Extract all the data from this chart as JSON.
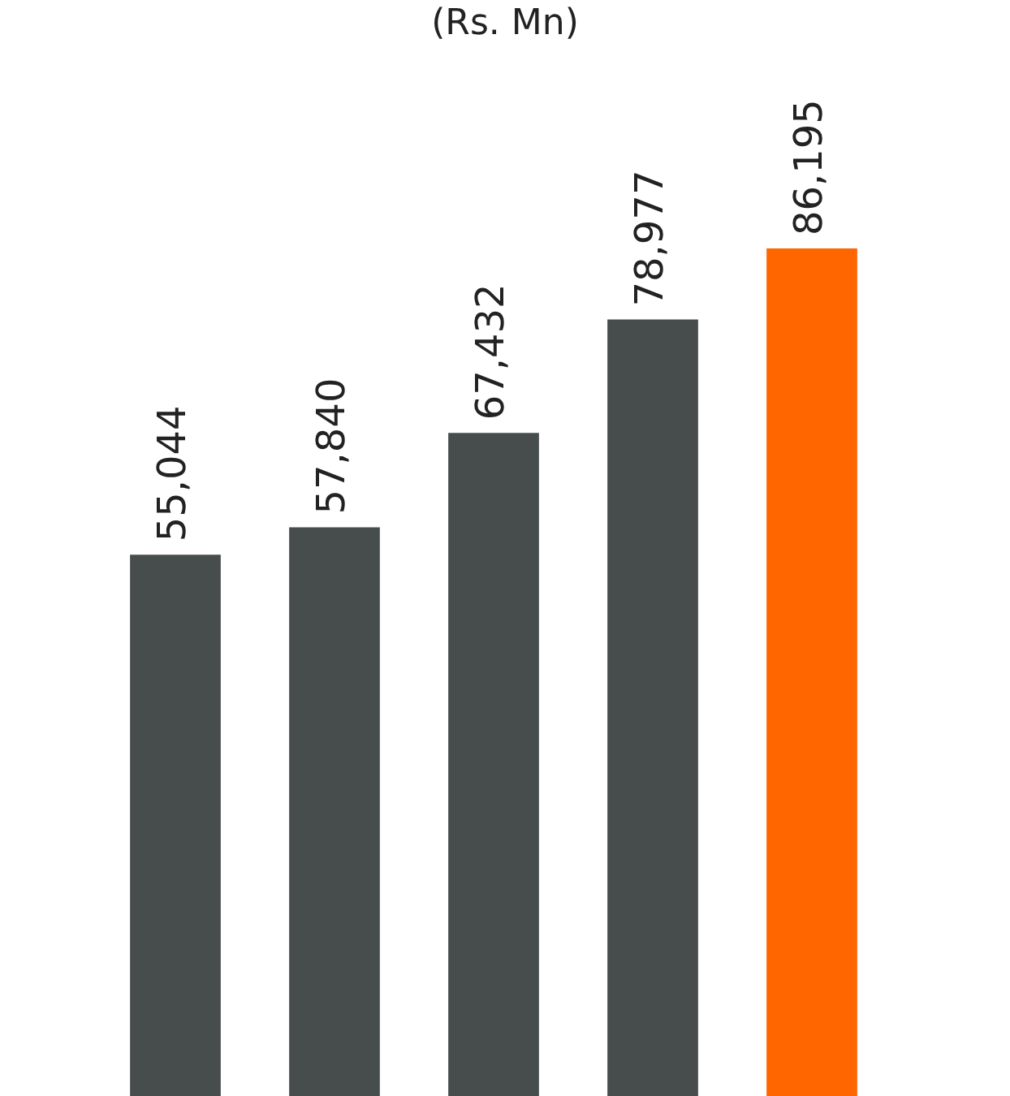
{
  "chart_data": {
    "type": "bar",
    "title": "(Rs. Mn)",
    "categories": [
      null,
      null,
      null,
      null,
      null
    ],
    "values": [
      55044,
      57840,
      67432,
      78977,
      86195
    ],
    "colors": [
      "#474d4d",
      "#474d4d",
      "#474d4d",
      "#474d4d",
      "#ff6600"
    ],
    "data_labels": true,
    "value_labels": [
      "55,044",
      "57,840",
      "67,432",
      "78,977",
      "86,195"
    ],
    "tick_labels": false
  }
}
